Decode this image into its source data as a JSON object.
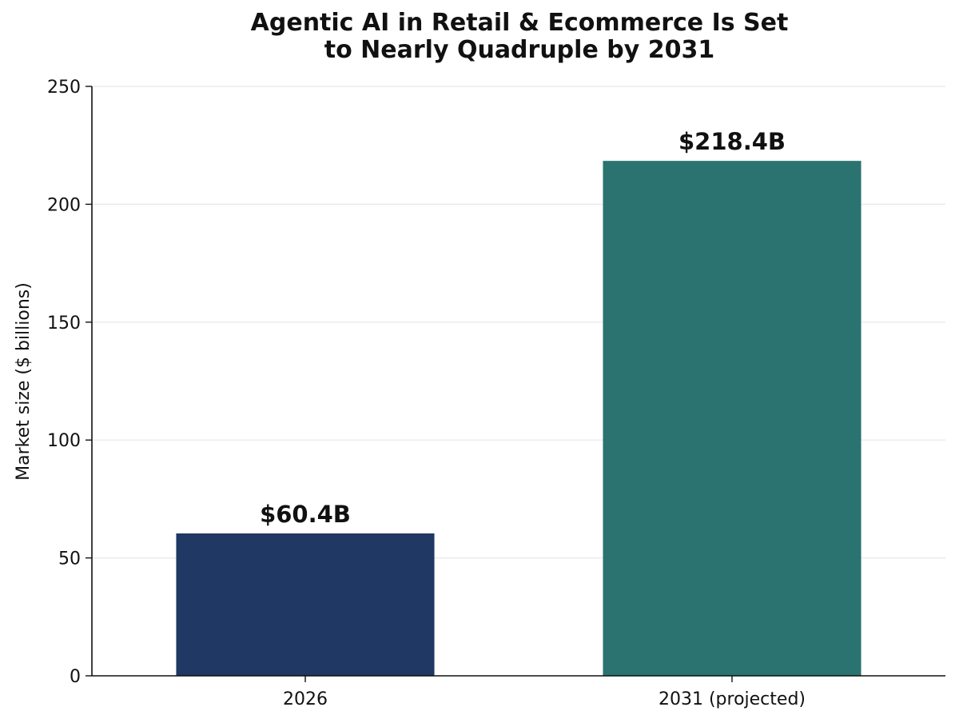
{
  "chart_data": {
    "type": "bar",
    "title": "Agentic AI in Retail & Ecommerce Is Set to Nearly Quadruple by 2031",
    "xlabel": "",
    "ylabel": "Market size ($ billions)",
    "ylim": [
      0,
      250
    ],
    "yticks": [
      0,
      50,
      100,
      150,
      200,
      250
    ],
    "grid": true,
    "categories": [
      "2026",
      "2031 (projected)"
    ],
    "values": [
      60.4,
      218.4
    ],
    "data_labels": [
      "$60.4B",
      "$218.4B"
    ],
    "colors": [
      "#1f3864",
      "#2a7370"
    ]
  }
}
